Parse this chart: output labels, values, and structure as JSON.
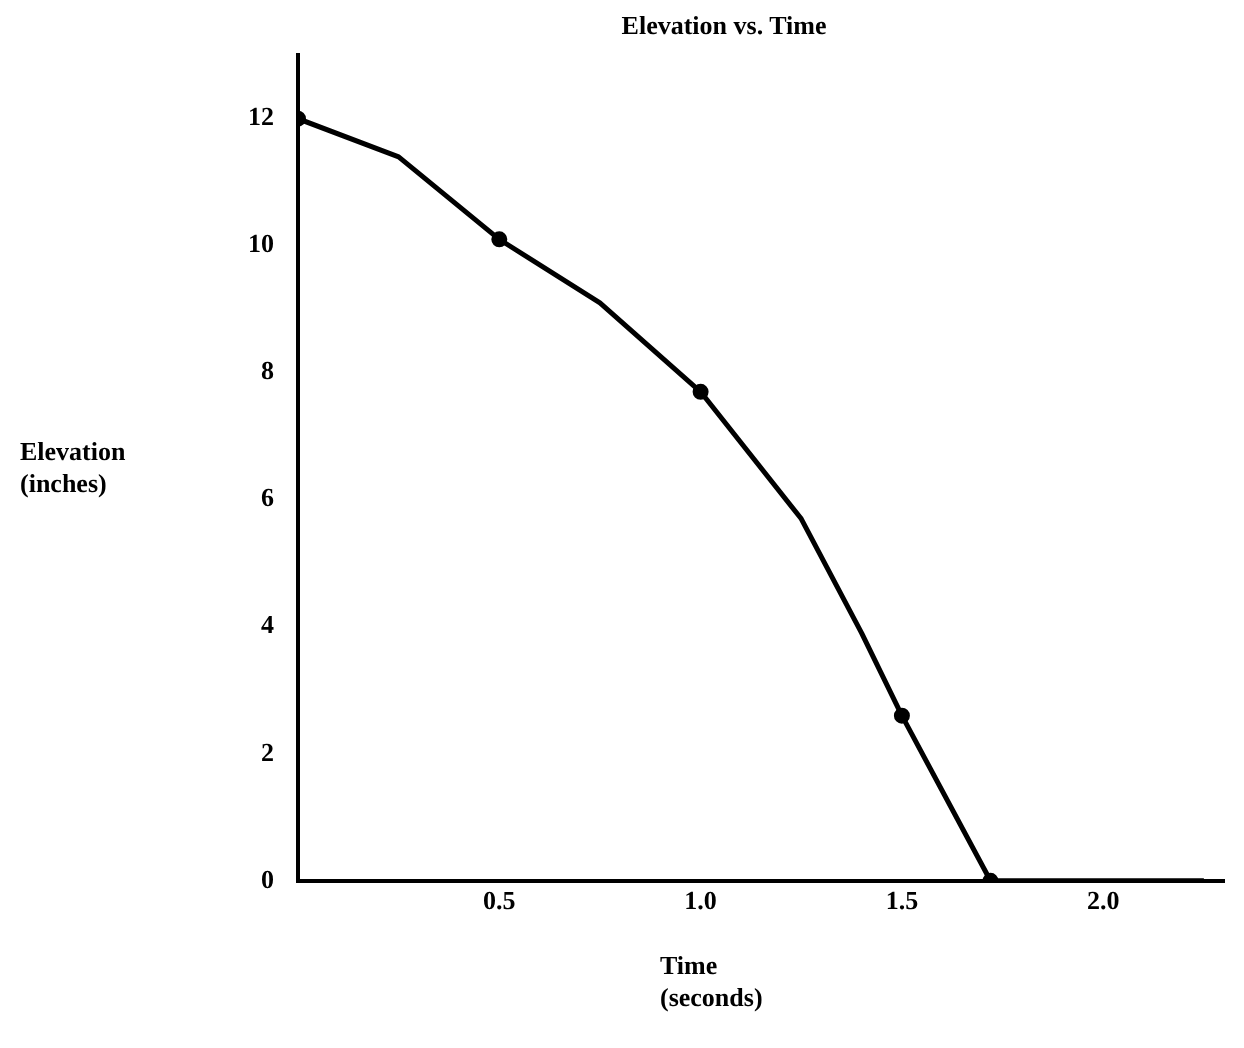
{
  "chart_data": {
    "type": "line",
    "title": "Elevation vs. Time",
    "xlabel": "Time\n(seconds)",
    "ylabel": "Elevation\n(inches)",
    "series": [
      {
        "color": "#000000",
        "marker": "none",
        "x": [
          0,
          0.25,
          0.5,
          0.75,
          1.0,
          1.25,
          1.4,
          1.5,
          1.72,
          2.25
        ],
        "values": [
          12,
          11.4,
          10.1,
          9.1,
          7.7,
          5.7,
          3.9,
          2.6,
          0,
          0
        ]
      },
      {
        "type": "scatter",
        "color": "#000000",
        "marker": "circle",
        "x": [
          0,
          0.5,
          1.0,
          1.5,
          1.72
        ],
        "values": [
          12,
          10.1,
          7.7,
          2.6,
          0
        ]
      }
    ],
    "xlim": [
      0,
      2.3
    ],
    "xticks": [
      0.5,
      {
        "value": 1,
        "label": "1.0"
      },
      1.5,
      {
        "value": 2,
        "label": "2.0"
      }
    ],
    "ylim": [
      0,
      13
    ],
    "yticks": [
      0,
      2,
      4,
      6,
      8,
      10,
      12
    ],
    "grid": false,
    "legend": false
  }
}
